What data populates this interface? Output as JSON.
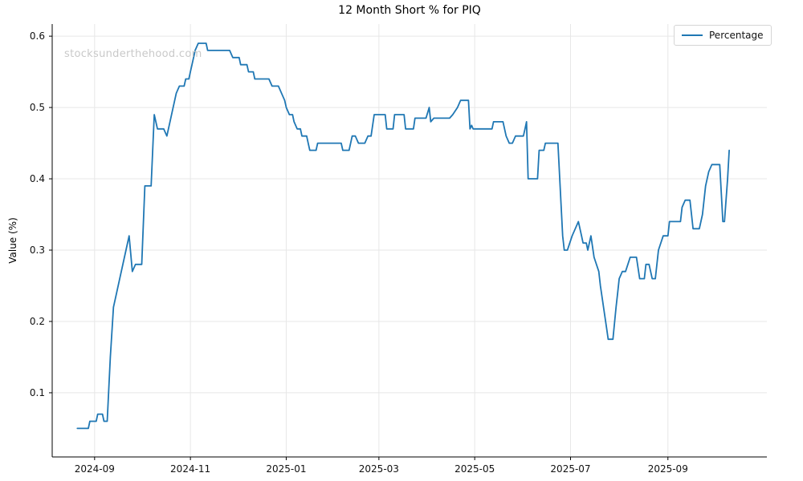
{
  "chart_data": {
    "type": "line",
    "title": "12 Month Short % for PIQ",
    "xlabel": "",
    "ylabel": "Value (%)",
    "watermark": "stocksunderthehood.com",
    "legend_position": "upper right",
    "grid": true,
    "x_tick_labels": [
      "2024-09",
      "2024-11",
      "2025-01",
      "2025-03",
      "2025-05",
      "2025-07",
      "2025-09"
    ],
    "y_ticks": [
      0.1,
      0.2,
      0.3,
      0.4,
      0.5,
      0.6
    ],
    "xlim": [
      "2024-08-05",
      "2025-11-03"
    ],
    "ylim": [
      0.01,
      0.617
    ],
    "colors": {
      "line": "#1f77b4",
      "grid": "#e7e7e7",
      "spine": "#000000",
      "tick_text": "#111111",
      "watermark": "#c9c9c9"
    },
    "series": [
      {
        "name": "Percentage",
        "color": "#1f77b4",
        "points": [
          [
            "2024-08-21",
            0.05
          ],
          [
            "2024-08-28",
            0.05
          ],
          [
            "2024-08-29",
            0.06
          ],
          [
            "2024-09-02",
            0.06
          ],
          [
            "2024-09-03",
            0.07
          ],
          [
            "2024-09-06",
            0.07
          ],
          [
            "2024-09-07",
            0.06
          ],
          [
            "2024-09-09",
            0.06
          ],
          [
            "2024-09-11",
            0.15
          ],
          [
            "2024-09-13",
            0.22
          ],
          [
            "2024-09-15",
            0.24
          ],
          [
            "2024-09-17",
            0.26
          ],
          [
            "2024-09-19",
            0.28
          ],
          [
            "2024-09-21",
            0.3
          ],
          [
            "2024-09-23",
            0.32
          ],
          [
            "2024-09-25",
            0.27
          ],
          [
            "2024-09-27",
            0.28
          ],
          [
            "2024-10-01",
            0.28
          ],
          [
            "2024-10-03",
            0.39
          ],
          [
            "2024-10-07",
            0.39
          ],
          [
            "2024-10-09",
            0.49
          ],
          [
            "2024-10-11",
            0.47
          ],
          [
            "2024-10-15",
            0.47
          ],
          [
            "2024-10-17",
            0.46
          ],
          [
            "2024-10-19",
            0.48
          ],
          [
            "2024-10-21",
            0.5
          ],
          [
            "2024-10-23",
            0.52
          ],
          [
            "2024-10-25",
            0.53
          ],
          [
            "2024-10-28",
            0.53
          ],
          [
            "2024-10-29",
            0.54
          ],
          [
            "2024-10-31",
            0.54
          ],
          [
            "2024-11-01",
            0.55
          ],
          [
            "2024-11-02",
            0.56
          ],
          [
            "2024-11-04",
            0.58
          ],
          [
            "2024-11-06",
            0.59
          ],
          [
            "2024-11-11",
            0.59
          ],
          [
            "2024-11-12",
            0.58
          ],
          [
            "2024-11-26",
            0.58
          ],
          [
            "2024-11-28",
            0.57
          ],
          [
            "2024-12-02",
            0.57
          ],
          [
            "2024-12-03",
            0.56
          ],
          [
            "2024-12-07",
            0.56
          ],
          [
            "2024-12-08",
            0.55
          ],
          [
            "2024-12-11",
            0.55
          ],
          [
            "2024-12-12",
            0.54
          ],
          [
            "2024-12-21",
            0.54
          ],
          [
            "2024-12-23",
            0.53
          ],
          [
            "2024-12-27",
            0.53
          ],
          [
            "2024-12-29",
            0.52
          ],
          [
            "2024-12-31",
            0.51
          ],
          [
            "2025-01-01",
            0.5
          ],
          [
            "2025-01-03",
            0.49
          ],
          [
            "2025-01-05",
            0.49
          ],
          [
            "2025-01-06",
            0.48
          ],
          [
            "2025-01-08",
            0.47
          ],
          [
            "2025-01-10",
            0.47
          ],
          [
            "2025-01-11",
            0.46
          ],
          [
            "2025-01-14",
            0.46
          ],
          [
            "2025-01-15",
            0.45
          ],
          [
            "2025-01-16",
            0.44
          ],
          [
            "2025-01-20",
            0.44
          ],
          [
            "2025-01-21",
            0.45
          ],
          [
            "2025-02-05",
            0.45
          ],
          [
            "2025-02-06",
            0.44
          ],
          [
            "2025-02-10",
            0.44
          ],
          [
            "2025-02-12",
            0.46
          ],
          [
            "2025-02-14",
            0.46
          ],
          [
            "2025-02-16",
            0.45
          ],
          [
            "2025-02-20",
            0.45
          ],
          [
            "2025-02-22",
            0.46
          ],
          [
            "2025-02-24",
            0.46
          ],
          [
            "2025-02-26",
            0.49
          ],
          [
            "2025-03-05",
            0.49
          ],
          [
            "2025-03-06",
            0.47
          ],
          [
            "2025-03-10",
            0.47
          ],
          [
            "2025-03-11",
            0.49
          ],
          [
            "2025-03-17",
            0.49
          ],
          [
            "2025-03-18",
            0.47
          ],
          [
            "2025-03-23",
            0.47
          ],
          [
            "2025-03-24",
            0.485
          ],
          [
            "2025-03-31",
            0.485
          ],
          [
            "2025-04-02",
            0.5
          ],
          [
            "2025-04-03",
            0.48
          ],
          [
            "2025-04-05",
            0.485
          ],
          [
            "2025-04-15",
            0.485
          ],
          [
            "2025-04-17",
            0.49
          ],
          [
            "2025-04-20",
            0.5
          ],
          [
            "2025-04-22",
            0.51
          ],
          [
            "2025-04-27",
            0.51
          ],
          [
            "2025-04-28",
            0.47
          ],
          [
            "2025-04-29",
            0.475
          ],
          [
            "2025-04-30",
            0.47
          ],
          [
            "2025-05-12",
            0.47
          ],
          [
            "2025-05-13",
            0.48
          ],
          [
            "2025-05-19",
            0.48
          ],
          [
            "2025-05-21",
            0.46
          ],
          [
            "2025-05-23",
            0.45
          ],
          [
            "2025-05-25",
            0.45
          ],
          [
            "2025-05-27",
            0.46
          ],
          [
            "2025-06-01",
            0.46
          ],
          [
            "2025-06-02",
            0.47
          ],
          [
            "2025-06-03",
            0.48
          ],
          [
            "2025-06-04",
            0.4
          ],
          [
            "2025-06-10",
            0.4
          ],
          [
            "2025-06-11",
            0.44
          ],
          [
            "2025-06-14",
            0.44
          ],
          [
            "2025-06-15",
            0.45
          ],
          [
            "2025-06-23",
            0.45
          ],
          [
            "2025-06-26",
            0.32
          ],
          [
            "2025-06-27",
            0.3
          ],
          [
            "2025-06-29",
            0.3
          ],
          [
            "2025-07-02",
            0.32
          ],
          [
            "2025-07-04",
            0.33
          ],
          [
            "2025-07-06",
            0.34
          ],
          [
            "2025-07-08",
            0.32
          ],
          [
            "2025-07-09",
            0.31
          ],
          [
            "2025-07-11",
            0.31
          ],
          [
            "2025-07-12",
            0.3
          ],
          [
            "2025-07-14",
            0.32
          ],
          [
            "2025-07-16",
            0.29
          ],
          [
            "2025-07-19",
            0.27
          ],
          [
            "2025-07-20",
            0.25
          ],
          [
            "2025-07-22",
            0.22
          ],
          [
            "2025-07-24",
            0.19
          ],
          [
            "2025-07-25",
            0.175
          ],
          [
            "2025-07-28",
            0.175
          ],
          [
            "2025-07-30",
            0.22
          ],
          [
            "2025-07-31",
            0.24
          ],
          [
            "2025-08-01",
            0.26
          ],
          [
            "2025-08-03",
            0.27
          ],
          [
            "2025-08-05",
            0.27
          ],
          [
            "2025-08-08",
            0.29
          ],
          [
            "2025-08-12",
            0.29
          ],
          [
            "2025-08-14",
            0.26
          ],
          [
            "2025-08-17",
            0.26
          ],
          [
            "2025-08-18",
            0.28
          ],
          [
            "2025-08-20",
            0.28
          ],
          [
            "2025-08-22",
            0.26
          ],
          [
            "2025-08-24",
            0.26
          ],
          [
            "2025-08-26",
            0.3
          ],
          [
            "2025-08-29",
            0.32
          ],
          [
            "2025-09-01",
            0.32
          ],
          [
            "2025-09-02",
            0.34
          ],
          [
            "2025-09-09",
            0.34
          ],
          [
            "2025-09-10",
            0.36
          ],
          [
            "2025-09-12",
            0.37
          ],
          [
            "2025-09-15",
            0.37
          ],
          [
            "2025-09-17",
            0.33
          ],
          [
            "2025-09-21",
            0.33
          ],
          [
            "2025-09-23",
            0.35
          ],
          [
            "2025-09-25",
            0.39
          ],
          [
            "2025-09-27",
            0.41
          ],
          [
            "2025-09-29",
            0.42
          ],
          [
            "2025-10-04",
            0.42
          ],
          [
            "2025-10-06",
            0.34
          ],
          [
            "2025-10-07",
            0.34
          ],
          [
            "2025-10-09",
            0.4
          ],
          [
            "2025-10-10",
            0.44
          ]
        ]
      }
    ]
  }
}
